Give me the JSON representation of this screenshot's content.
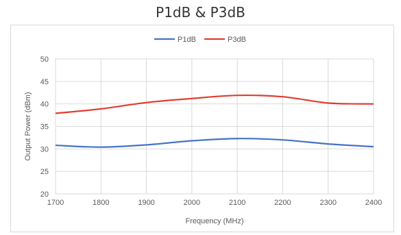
{
  "chart_data": {
    "type": "line",
    "title": "P1dB & P3dB",
    "xlabel": "Frequency (MHz)",
    "ylabel": "Output Power (dBm)",
    "x": [
      1700,
      1800,
      1900,
      2000,
      2100,
      2200,
      2300,
      2400
    ],
    "xlim": [
      1700,
      2400
    ],
    "ylim": [
      20,
      50
    ],
    "xticks": [
      1700,
      1800,
      1900,
      2000,
      2100,
      2200,
      2300,
      2400
    ],
    "yticks": [
      20,
      25,
      30,
      35,
      40,
      45,
      50
    ],
    "grid": true,
    "legend_position": "top",
    "series": [
      {
        "name": "P1dB",
        "color": "#4472c4",
        "values": [
          30.8,
          30.4,
          30.9,
          31.8,
          32.3,
          32.0,
          31.1,
          30.5
        ]
      },
      {
        "name": "P3dB",
        "color": "#e03c31",
        "values": [
          37.9,
          38.9,
          40.3,
          41.2,
          41.9,
          41.6,
          40.2,
          40.0
        ]
      }
    ]
  }
}
